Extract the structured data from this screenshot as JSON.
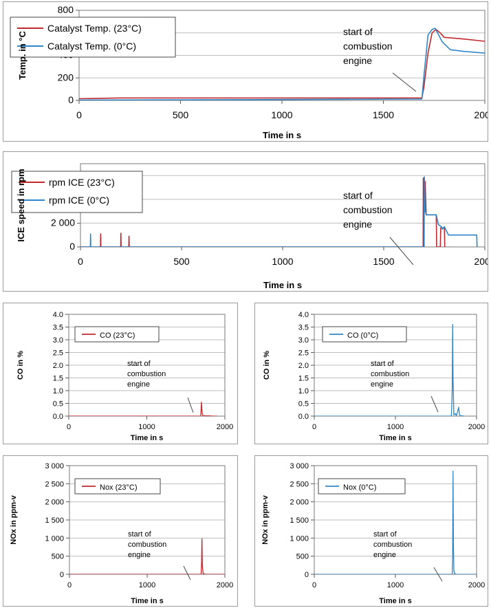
{
  "chart_data": [
    {
      "id": "temp",
      "type": "line",
      "ylabel": "Temp. in °C",
      "xlabel": "Time in s",
      "xlim": [
        0,
        2000
      ],
      "ylim": [
        0,
        800
      ],
      "xticks": [
        "0",
        "500",
        "1000",
        "1500",
        "2000"
      ],
      "yticks": [
        "0",
        "200",
        "400",
        "600",
        "800"
      ],
      "grid": true,
      "legend_position": "top-left",
      "annotation": [
        "start of",
        "combustion",
        "engine"
      ],
      "series": [
        {
          "name": "Catalyst Temp. (23°C)",
          "color": "#c0282d",
          "x": [
            0,
            200,
            1000,
            1690,
            1700,
            1720,
            1740,
            1760,
            1780,
            1800,
            1900,
            2000
          ],
          "y": [
            15,
            22,
            22,
            22,
            120,
            420,
            600,
            630,
            600,
            560,
            545,
            525
          ]
        },
        {
          "name": "Catalyst Temp. (0°C)",
          "color": "#2e86c8",
          "x": [
            0,
            500,
            1000,
            1690,
            1700,
            1720,
            1740,
            1755,
            1770,
            1790,
            1830,
            1900,
            2000
          ],
          "y": [
            3,
            5,
            8,
            12,
            220,
            580,
            630,
            640,
            590,
            520,
            450,
            435,
            420
          ]
        }
      ]
    },
    {
      "id": "rpm",
      "type": "line",
      "ylabel": "ICE speed in rpm",
      "xlabel": "Time in s",
      "xlim": [
        0,
        2000
      ],
      "ylim": [
        0,
        7000
      ],
      "xticks": [
        "0",
        "500",
        "1000",
        "1500",
        "2000"
      ],
      "yticks": [
        "0",
        "2 000",
        "4 000",
        "6 000"
      ],
      "ytick_values": [
        0,
        2000,
        4000,
        6000
      ],
      "grid": true,
      "legend_position": "top-left",
      "annotation": [
        "start of",
        "combustion",
        "engine"
      ],
      "series": [
        {
          "name": "rpm ICE (23°C)",
          "color": "#c0282d",
          "x": [
            0,
            99,
            100,
            101,
            199,
            200,
            201,
            239,
            240,
            241,
            1695,
            1696,
            1700,
            1705,
            1710,
            1712,
            1750,
            1760,
            1762,
            1780,
            1782,
            1800,
            1802,
            1803
          ],
          "y": [
            0,
            0,
            1100,
            0,
            0,
            1150,
            0,
            0,
            900,
            0,
            0,
            5800,
            4000,
            5500,
            2700,
            2700,
            2700,
            2700,
            0,
            0,
            1600,
            1600,
            0,
            0
          ]
        },
        {
          "name": "rpm ICE (0°C)",
          "color": "#2e86c8",
          "x": [
            0,
            49,
            50,
            51,
            1700,
            1701,
            1705,
            1712,
            1720,
            1760,
            1770,
            1785,
            1790,
            1800,
            1820,
            1950,
            1960,
            1962
          ],
          "y": [
            0,
            0,
            1100,
            0,
            0,
            5900,
            3000,
            2700,
            2700,
            2700,
            1900,
            1700,
            1500,
            1700,
            1000,
            1000,
            1000,
            0
          ]
        }
      ]
    },
    {
      "id": "co23",
      "type": "line",
      "ylabel": "CO in %",
      "xlabel": "Time in s",
      "xlim": [
        0,
        2000
      ],
      "ylim": [
        0,
        4
      ],
      "xticks": [
        "0",
        "1000",
        "2000"
      ],
      "yticks": [
        "0.0",
        "0.5",
        "1.0",
        "1.5",
        "2.0",
        "2.5",
        "3.0",
        "3.5",
        "4.0"
      ],
      "grid": true,
      "legend_position": "top-left",
      "annotation": [
        "start of",
        "combustion",
        "engine"
      ],
      "series": [
        {
          "name": "CO (23°C)",
          "color": "#c0282d",
          "x": [
            0,
            1690,
            1695,
            1700,
            1705,
            1710,
            1720,
            1750,
            1800,
            1850,
            1900
          ],
          "y": [
            0,
            0,
            0.2,
            0.55,
            0.3,
            0.1,
            0.02,
            0.01,
            0.01,
            0,
            0
          ]
        }
      ]
    },
    {
      "id": "co0",
      "type": "line",
      "ylabel": "CO in %",
      "xlabel": "Time in s",
      "xlim": [
        0,
        2000
      ],
      "ylim": [
        0,
        4
      ],
      "xticks": [
        "0",
        "1000",
        "2000"
      ],
      "yticks": [
        "0.0",
        "0.5",
        "1.0",
        "1.5",
        "2.0",
        "2.5",
        "3.0",
        "3.5",
        "4.0"
      ],
      "grid": true,
      "legend_position": "top-left",
      "annotation": [
        "start of",
        "combustion",
        "engine"
      ],
      "series": [
        {
          "name": "CO (0°C)",
          "color": "#2e86c8",
          "x": [
            0,
            1690,
            1700,
            1705,
            1710,
            1720,
            1740,
            1750,
            1760,
            1780,
            1790,
            1800,
            1820,
            1850
          ],
          "y": [
            0,
            0,
            1.0,
            3.6,
            1.5,
            0.05,
            0.1,
            0.02,
            0.1,
            0.35,
            0.05,
            0.02,
            0.01,
            0
          ]
        }
      ]
    },
    {
      "id": "nox23",
      "type": "line",
      "ylabel": "NOx in ppm-v",
      "xlabel": "Time in s",
      "xlim": [
        0,
        2000
      ],
      "ylim": [
        0,
        3000
      ],
      "xticks": [
        "0",
        "1000",
        "2000"
      ],
      "yticks": [
        "0",
        "500",
        "1 000",
        "1 500",
        "2 000",
        "2 500",
        "3 000"
      ],
      "ytick_values": [
        0,
        500,
        1000,
        1500,
        2000,
        2500,
        3000
      ],
      "grid": true,
      "legend_position": "top-left",
      "annotation": [
        "start of",
        "combustion",
        "engine"
      ],
      "series": [
        {
          "name": "Nox (23°C)",
          "color": "#c0282d",
          "x": [
            0,
            1695,
            1700,
            1705,
            1710,
            1720,
            1750,
            2000
          ],
          "y": [
            0,
            0,
            300,
            980,
            250,
            20,
            0,
            0
          ]
        }
      ]
    },
    {
      "id": "nox0",
      "type": "line",
      "ylabel": "NOx in ppm-v",
      "xlabel": "Time in s",
      "xlim": [
        0,
        2000
      ],
      "ylim": [
        0,
        3000
      ],
      "xticks": [
        "0",
        "1000",
        "2000"
      ],
      "yticks": [
        "0",
        "500",
        "1 000",
        "1 500",
        "2 000",
        "2 500",
        "3 000"
      ],
      "ytick_values": [
        0,
        500,
        1000,
        1500,
        2000,
        2500,
        3000
      ],
      "grid": true,
      "legend_position": "top-left",
      "annotation": [
        "start of",
        "combustion",
        "engine"
      ],
      "series": [
        {
          "name": "Nox (0°C)",
          "color": "#2e86c8",
          "x": [
            0,
            1700,
            1705,
            1710,
            1715,
            1720,
            1730,
            1750,
            2000
          ],
          "y": [
            0,
            0,
            500,
            2850,
            800,
            100,
            20,
            0,
            0
          ]
        }
      ]
    }
  ]
}
